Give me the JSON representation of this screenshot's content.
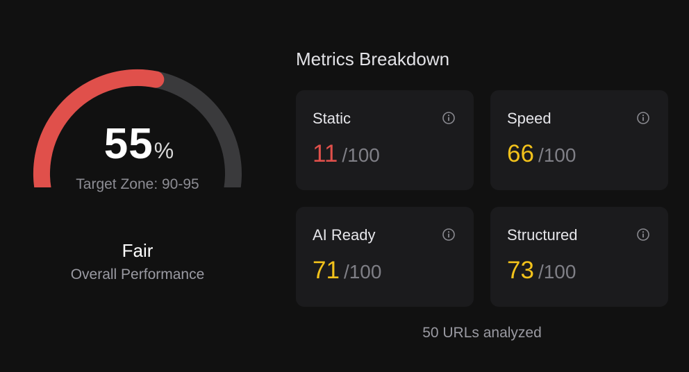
{
  "gauge": {
    "value": "55",
    "unit": "%",
    "fraction": 0.55,
    "target_zone": "Target Zone: 90-95",
    "fill_color": "#e0504b",
    "track_color": "#3a3a3c"
  },
  "summary": {
    "rating": "Fair",
    "subtitle": "Overall Performance"
  },
  "metrics": {
    "title": "Metrics Breakdown",
    "info_icon": "info-icon",
    "cards": [
      {
        "label": "Static",
        "value": "11",
        "max": "/100",
        "color": "#e0504b"
      },
      {
        "label": "Speed",
        "value": "66",
        "max": "/100",
        "color": "#f2c21b"
      },
      {
        "label": "AI Ready",
        "value": "71",
        "max": "/100",
        "color": "#f2c21b"
      },
      {
        "label": "Structured",
        "value": "73",
        "max": "/100",
        "color": "#f2c21b"
      }
    ]
  },
  "footer": {
    "urls_analyzed": "50 URLs analyzed"
  }
}
